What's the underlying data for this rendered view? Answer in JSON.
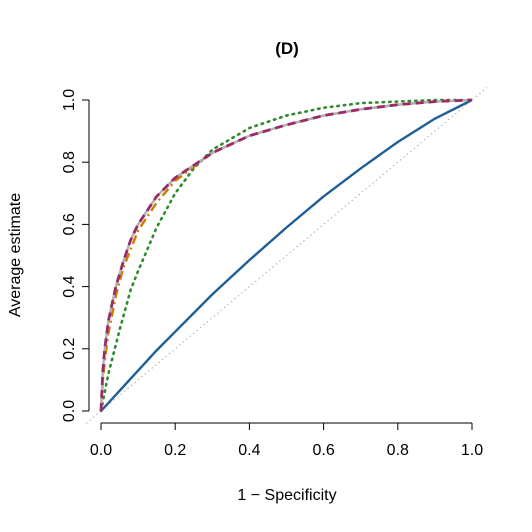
{
  "chart_data": {
    "type": "line",
    "title": "(D)",
    "xlabel": "1 − Specificity",
    "ylabel": "Average estimate",
    "xlim": [
      0,
      1
    ],
    "ylim": [
      0,
      1
    ],
    "x_ticks": [
      "0.0",
      "0.2",
      "0.4",
      "0.6",
      "0.8",
      "1.0"
    ],
    "y_ticks": [
      "0.0",
      "0.2",
      "0.4",
      "0.6",
      "0.8",
      "1.0"
    ],
    "grid": false,
    "legend": "none",
    "reference_line": {
      "x": [
        0,
        1
      ],
      "y": [
        0,
        1
      ],
      "color": "#aaaaaa",
      "style": "dotted"
    },
    "series": [
      {
        "color": "#1f5f96",
        "style": "solid",
        "x": [
          0,
          0.05,
          0.1,
          0.15,
          0.2,
          0.3,
          0.4,
          0.5,
          0.6,
          0.7,
          0.8,
          0.9,
          1.0
        ],
        "y": [
          0,
          0.065,
          0.13,
          0.195,
          0.255,
          0.375,
          0.485,
          0.59,
          0.69,
          0.78,
          0.865,
          0.94,
          1.0
        ]
      },
      {
        "color": "#2e8b2e",
        "style": "dotted",
        "x": [
          0,
          0.01,
          0.02,
          0.05,
          0.08,
          0.1,
          0.15,
          0.2,
          0.25,
          0.3,
          0.4,
          0.5,
          0.6,
          0.7,
          0.8,
          0.9,
          1.0
        ],
        "y": [
          0,
          0.06,
          0.12,
          0.26,
          0.39,
          0.45,
          0.59,
          0.7,
          0.78,
          0.84,
          0.91,
          0.95,
          0.975,
          0.99,
          0.995,
          1.0,
          1.0
        ]
      },
      {
        "color": "#cc7a00",
        "style": "dashdot",
        "x": [
          0,
          0.005,
          0.01,
          0.02,
          0.04,
          0.06,
          0.08,
          0.1,
          0.15,
          0.2,
          0.3,
          0.4,
          0.5,
          0.6,
          0.7,
          0.8,
          0.9,
          1.0
        ],
        "y": [
          0,
          0.1,
          0.16,
          0.25,
          0.37,
          0.46,
          0.52,
          0.58,
          0.67,
          0.74,
          0.83,
          0.885,
          0.92,
          0.95,
          0.97,
          0.985,
          0.995,
          1.0
        ]
      },
      {
        "color": "#b0b0b0",
        "style": "solid",
        "x": [
          0,
          0.005,
          0.01,
          0.02,
          0.04,
          0.06,
          0.08,
          0.1,
          0.15,
          0.2,
          0.3,
          0.4,
          0.5,
          0.6,
          0.7,
          0.8,
          0.9,
          1.0
        ],
        "y": [
          0,
          0.13,
          0.2,
          0.29,
          0.4,
          0.48,
          0.55,
          0.6,
          0.69,
          0.75,
          0.83,
          0.885,
          0.92,
          0.95,
          0.97,
          0.985,
          0.995,
          1.0
        ]
      },
      {
        "color": "#9a2a6a",
        "style": "dashed",
        "x": [
          0,
          0.005,
          0.01,
          0.02,
          0.04,
          0.06,
          0.08,
          0.1,
          0.15,
          0.2,
          0.3,
          0.4,
          0.5,
          0.6,
          0.7,
          0.8,
          0.9,
          1.0
        ],
        "y": [
          0,
          0.13,
          0.2,
          0.29,
          0.4,
          0.48,
          0.55,
          0.6,
          0.69,
          0.75,
          0.83,
          0.885,
          0.92,
          0.95,
          0.97,
          0.985,
          0.995,
          1.0
        ]
      }
    ]
  }
}
